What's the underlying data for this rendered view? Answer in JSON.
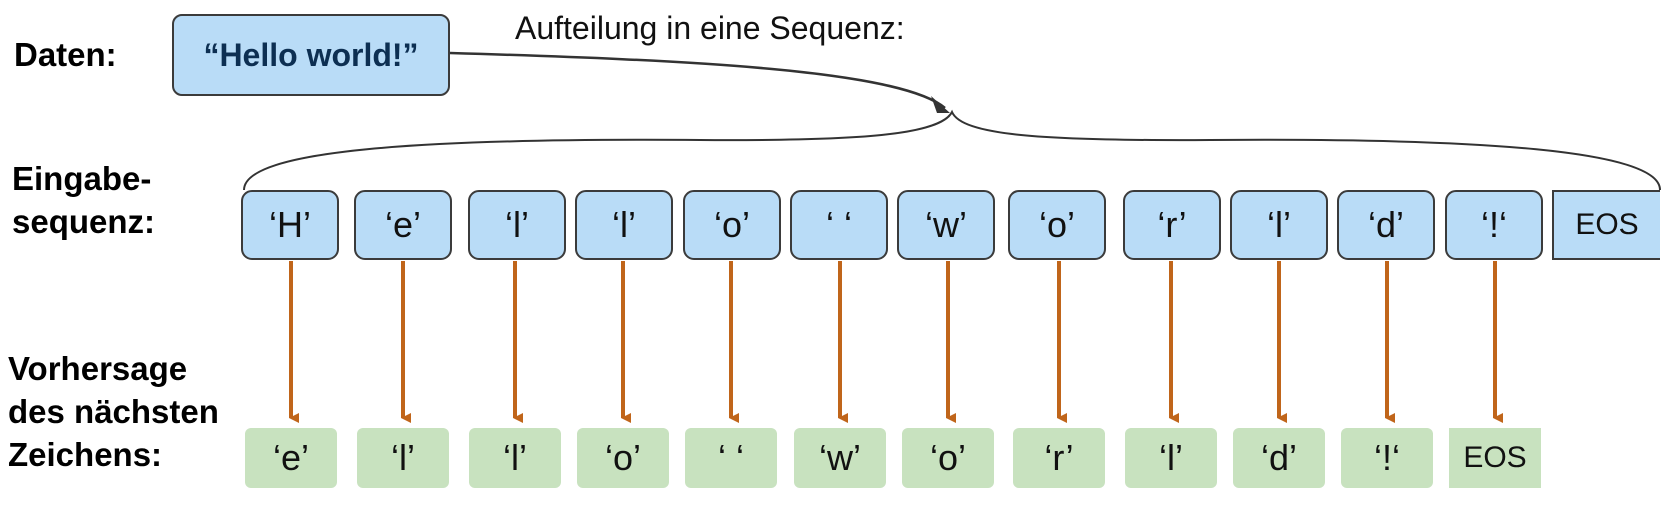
{
  "labels": {
    "data": "Daten:",
    "input_line1": "Eingabe-",
    "input_line2": "sequenz:",
    "pred_line1": "Vorhersage",
    "pred_line2": "des nächsten",
    "pred_line3": "Zeichens:"
  },
  "data_text": "“Hello world!”",
  "subtitle": "Aufteilung in eine Sequenz:",
  "input_sequence": [
    "‘H’",
    "‘e’",
    "‘l’",
    "‘l’",
    "‘o’",
    "‘ ‘",
    "‘w’",
    "‘o’",
    "‘r’",
    "‘l’",
    "‘d’",
    "‘!‘",
    "EOS"
  ],
  "output_sequence": [
    "‘e’",
    "‘l’",
    "‘l’",
    "‘o’",
    "‘ ‘",
    "‘w’",
    "‘o’",
    "‘r’",
    "‘l’",
    "‘d’",
    "‘!‘",
    "EOS"
  ],
  "colors": {
    "input_fill": "#b9dcf7",
    "output_fill": "#c8e2bf",
    "arrow": "#c0651a",
    "box_border": "#3b3b3b"
  }
}
